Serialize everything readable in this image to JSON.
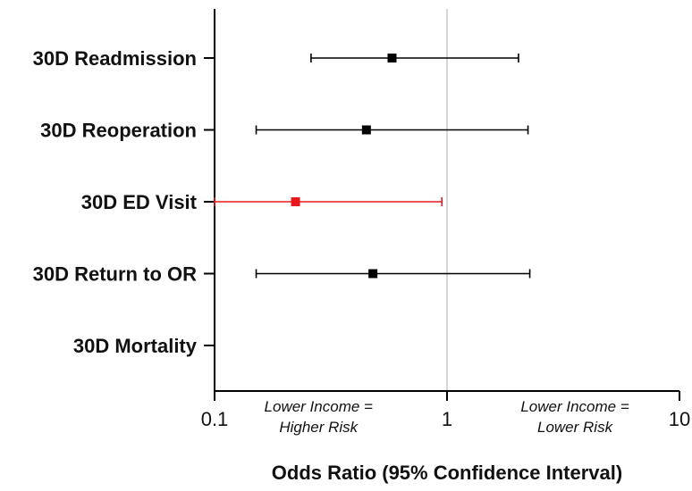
{
  "chart_data": {
    "type": "forest",
    "xscale": "log",
    "xlim": [
      0.1,
      10
    ],
    "reference_line": 1,
    "xlabel": "Odds Ratio (95% Confidence Interval)",
    "x_ticks": [
      {
        "value": 0.1,
        "label": "0.1"
      },
      {
        "value": 1,
        "label": "1"
      },
      {
        "value": 10,
        "label": "10"
      }
    ],
    "annotations": [
      {
        "lines": [
          "Lower Income =",
          "Higher Risk"
        ],
        "x": 0.28
      },
      {
        "lines": [
          "Lower Income =",
          "Lower Risk"
        ],
        "x": 3.55
      }
    ],
    "rows": [
      {
        "label": "30D Readmission",
        "or": 0.58,
        "lower": 0.26,
        "upper": 2.03,
        "color": "#000000"
      },
      {
        "label": "30D Reoperation",
        "or": 0.45,
        "lower": 0.151,
        "upper": 2.23,
        "color": "#000000"
      },
      {
        "label": "30D ED Visit",
        "or": 0.223,
        "lower": 0.1,
        "upper": 0.95,
        "color": "#e8191c"
      },
      {
        "label": "30D Return to OR",
        "or": 0.48,
        "lower": 0.151,
        "upper": 2.27,
        "color": "#000000"
      },
      {
        "label": "30D Mortality",
        "or": null,
        "lower": null,
        "upper": null,
        "color": "#000000"
      }
    ],
    "colors": {
      "axis": "#000000",
      "reference_line": "#c8c8c8",
      "significant": "#e8191c",
      "default": "#000000"
    }
  }
}
